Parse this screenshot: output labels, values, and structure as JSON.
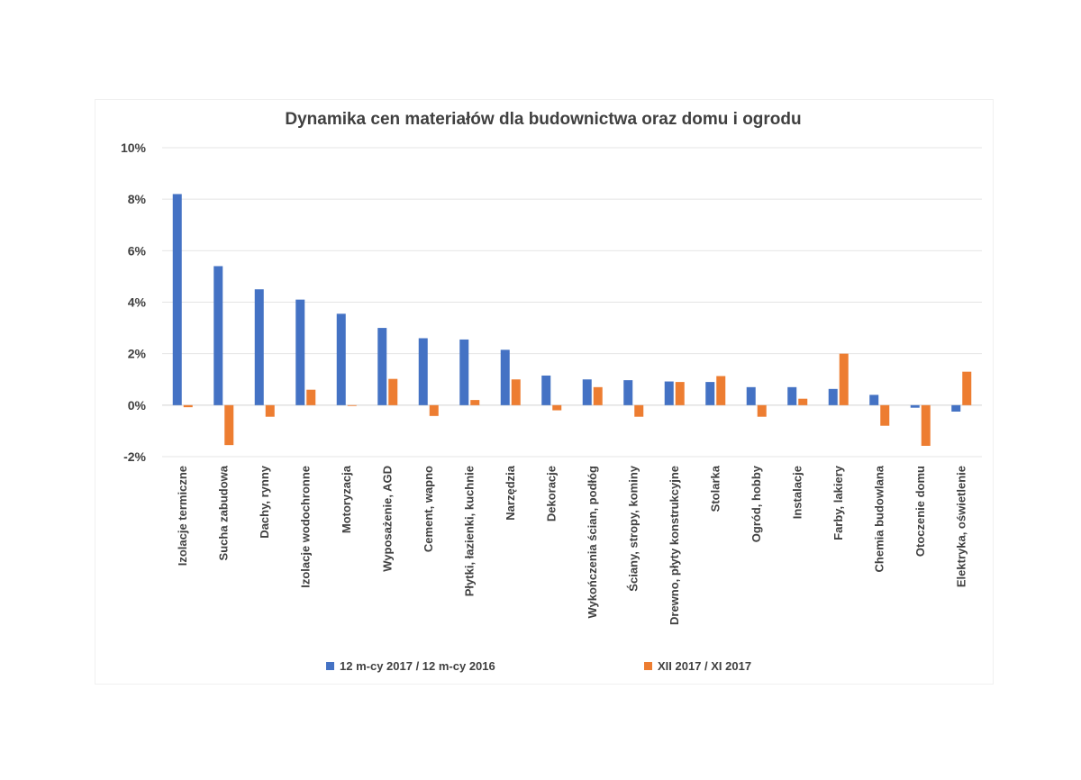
{
  "chart_data": {
    "type": "bar",
    "title": "Dynamika cen materiałów dla budownictwa oraz domu i ogrodu",
    "categories": [
      "Izolacje termiczne",
      "Sucha zabudowa",
      "Dachy, rynny",
      "Izolacje wodochronne",
      "Motoryzacja",
      "Wyposażenie, AGD",
      "Cement, wapno",
      "Płytki, łazienki, kuchnie",
      "Narzędzia",
      "Dekoracje",
      "Wykończenia ścian, podłóg",
      "Ściany, stropy, kominy",
      "Drewno, płyty konstrukcyjne",
      "Stolarka",
      "Ogród, hobby",
      "Instalacje",
      "Farby, lakiery",
      "Chemia budowlana",
      "Otoczenie domu",
      "Elektryka, oświetlenie"
    ],
    "series": [
      {
        "name": "12 m-cy 2017 / 12 m-cy 2016",
        "color": "#4472c4",
        "values": [
          8.2,
          5.4,
          4.5,
          4.1,
          3.55,
          3.0,
          2.6,
          2.55,
          2.15,
          1.15,
          1.0,
          0.97,
          0.92,
          0.9,
          0.7,
          0.7,
          0.63,
          0.4,
          -0.1,
          -0.25
        ]
      },
      {
        "name": "XII 2017 / XI 2017",
        "color": "#ed7d31",
        "values": [
          -0.08,
          -1.55,
          -0.45,
          0.6,
          -0.03,
          1.02,
          -0.42,
          0.2,
          1.0,
          -0.2,
          0.7,
          -0.45,
          0.9,
          1.13,
          -0.45,
          0.25,
          2.0,
          -0.8,
          -1.58,
          1.3
        ]
      }
    ],
    "ylim": [
      -2,
      10
    ],
    "yticks": [
      -2,
      0,
      2,
      4,
      6,
      8,
      10
    ],
    "ytick_labels": [
      "-2%",
      "0%",
      "2%",
      "4%",
      "6%",
      "8%",
      "10%"
    ],
    "grid": true,
    "legend_position": "bottom"
  }
}
